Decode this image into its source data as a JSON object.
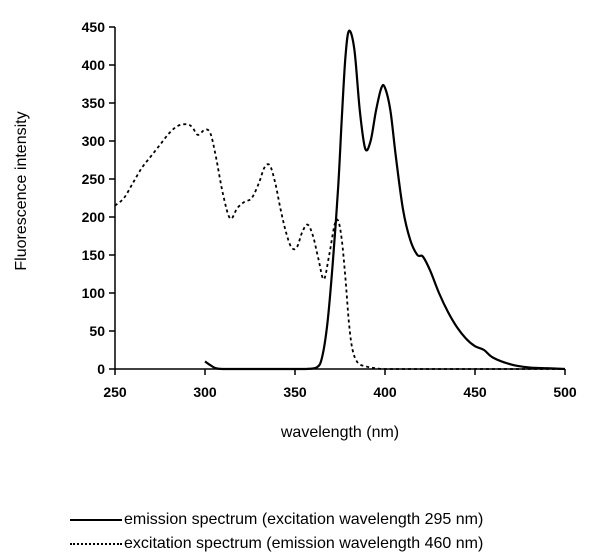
{
  "chart_data": {
    "type": "line",
    "title": "",
    "xlabel": "wavelength (nm)",
    "ylabel": "Fluorescence intensity",
    "xlim": [
      250,
      500
    ],
    "ylim": [
      0,
      450
    ],
    "x_ticks": [
      250,
      300,
      350,
      400,
      450,
      500
    ],
    "y_ticks": [
      0,
      50,
      100,
      150,
      200,
      250,
      300,
      350,
      400,
      450
    ],
    "grid": false,
    "legend_position": "bottom",
    "series": [
      {
        "name": "emission spectrum (excitation wavelength 295 nm)",
        "style": "solid",
        "color": "#000000",
        "x": [
          300,
          303,
          306,
          310,
          320,
          340,
          355,
          362,
          365,
          368,
          371,
          374,
          376,
          378,
          380,
          383,
          386,
          389,
          392,
          395,
          398,
          400,
          403,
          406,
          410,
          414,
          418,
          421,
          425,
          430,
          435,
          440,
          445,
          450,
          455,
          460,
          470,
          480,
          490,
          500
        ],
        "y": [
          10,
          5,
          1,
          0,
          0,
          0,
          0,
          2,
          15,
          60,
          140,
          240,
          330,
          410,
          445,
          420,
          340,
          290,
          300,
          340,
          370,
          370,
          340,
          280,
          210,
          170,
          150,
          148,
          130,
          100,
          75,
          55,
          40,
          30,
          25,
          15,
          6,
          2,
          1,
          0
        ]
      },
      {
        "name": "excitation spectrum (emission wavelength 460 nm)",
        "style": "dotted",
        "color": "#000000",
        "x": [
          250,
          255,
          260,
          265,
          270,
          275,
          280,
          285,
          290,
          293,
          296,
          300,
          303,
          306,
          310,
          314,
          318,
          322,
          326,
          330,
          333,
          336,
          339,
          342,
          345,
          348,
          351,
          354,
          357,
          360,
          363,
          366,
          369,
          372,
          374,
          376,
          378,
          380,
          382,
          385,
          390,
          395,
          400,
          420,
          440,
          460,
          480,
          500
        ],
        "y": [
          215,
          225,
          245,
          265,
          280,
          295,
          310,
          320,
          322,
          318,
          308,
          315,
          310,
          280,
          230,
          198,
          212,
          220,
          225,
          245,
          265,
          268,
          245,
          210,
          180,
          160,
          160,
          180,
          190,
          175,
          145,
          118,
          150,
          190,
          195,
          170,
          120,
          60,
          25,
          8,
          3,
          1,
          0,
          0,
          0,
          0,
          0,
          0
        ]
      }
    ]
  },
  "legend": {
    "items": [
      {
        "label": "emission spectrum (excitation wavelength 295 nm)",
        "style": "solid"
      },
      {
        "label": "excitation spectrum (emission wavelength 460 nm)",
        "style": "dotted"
      }
    ]
  }
}
